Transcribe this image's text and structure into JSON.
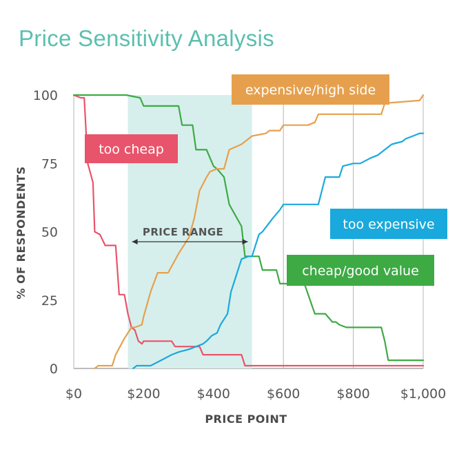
{
  "chart_data": {
    "type": "line",
    "title": "Price Sensitivity Analysis",
    "xlabel": "PRICE POINT",
    "ylabel": "% OF RESPONDENTS",
    "xlim": [
      0,
      1000
    ],
    "ylim": [
      0,
      100
    ],
    "x_ticks": [
      {
        "value": 0,
        "label": "$0"
      },
      {
        "value": 200,
        "label": "$200"
      },
      {
        "value": 400,
        "label": "$400"
      },
      {
        "value": 600,
        "label": "$600"
      },
      {
        "value": 800,
        "label": "$800"
      },
      {
        "value": 1000,
        "label": "$1,000"
      }
    ],
    "y_ticks": [
      {
        "value": 0,
        "label": "0"
      },
      {
        "value": 25,
        "label": "25"
      },
      {
        "value": 50,
        "label": "50"
      },
      {
        "value": 75,
        "label": "75"
      },
      {
        "value": 100,
        "label": "100"
      }
    ],
    "grid": true,
    "price_range": {
      "label": "PRICE RANGE",
      "x_start": 155,
      "x_end": 510,
      "color": "#d6efec"
    },
    "series": [
      {
        "name": "too cheap",
        "color": "#e8546b",
        "x": [
          0,
          20,
          30,
          40,
          55,
          60,
          75,
          90,
          120,
          130,
          145,
          155,
          165,
          175,
          185,
          195,
          200,
          220,
          280,
          290,
          360,
          370,
          480,
          490,
          1000
        ],
        "y": [
          100,
          99,
          99,
          75,
          68,
          50,
          49,
          45,
          45,
          27,
          27,
          20,
          15,
          14,
          10,
          9,
          10,
          10,
          10,
          8,
          8,
          5,
          5,
          1,
          1
        ]
      },
      {
        "name": "cheap/good value",
        "color": "#3daa44",
        "x": [
          0,
          150,
          190,
          200,
          300,
          310,
          340,
          350,
          380,
          390,
          400,
          410,
          430,
          445,
          480,
          490,
          530,
          540,
          580,
          590,
          660,
          690,
          720,
          740,
          750,
          760,
          780,
          880,
          890,
          900,
          1000
        ],
        "y": [
          100,
          100,
          99,
          96,
          96,
          89,
          89,
          80,
          80,
          77,
          74,
          73,
          70,
          60,
          52,
          41,
          41,
          36,
          36,
          31,
          31,
          20,
          20,
          17,
          17,
          16,
          15,
          15,
          10,
          3,
          3
        ]
      },
      {
        "name": "expensive/high side",
        "color": "#e6a04d",
        "x": [
          60,
          70,
          110,
          120,
          145,
          150,
          165,
          175,
          195,
          200,
          220,
          240,
          270,
          300,
          330,
          345,
          360,
          380,
          390,
          410,
          430,
          445,
          480,
          510,
          550,
          560,
          590,
          600,
          670,
          690,
          700,
          880,
          890,
          990,
          1000
        ],
        "y": [
          0,
          1,
          1,
          5,
          11,
          12,
          15,
          15,
          16,
          19,
          28,
          35,
          35,
          42,
          48,
          55,
          65,
          70,
          72,
          73,
          73,
          80,
          82,
          85,
          86,
          87,
          87,
          89,
          89,
          90,
          93,
          93,
          97,
          98,
          100
        ]
      },
      {
        "name": "too expensive",
        "color": "#1aa9dc",
        "x": [
          170,
          180,
          220,
          250,
          280,
          300,
          330,
          350,
          370,
          380,
          395,
          410,
          420,
          440,
          450,
          460,
          470,
          480,
          500,
          510,
          530,
          540,
          570,
          590,
          600,
          700,
          720,
          760,
          770,
          800,
          820,
          850,
          870,
          890,
          910,
          940,
          950,
          970,
          990,
          1000
        ],
        "y": [
          0,
          1,
          1,
          3,
          5,
          6,
          7,
          8,
          9,
          10,
          12,
          13,
          16,
          20,
          28,
          32,
          36,
          40,
          41,
          41,
          49,
          50,
          55,
          58,
          60,
          60,
          70,
          70,
          74,
          75,
          75,
          77,
          78,
          80,
          82,
          83,
          84,
          85,
          86,
          86
        ]
      }
    ],
    "annotations": [
      {
        "series": "too cheap",
        "text": "too cheap",
        "color": "#e8546b"
      },
      {
        "series": "expensive/high side",
        "text": "expensive/high side",
        "color": "#e6a04d"
      },
      {
        "series": "too expensive",
        "text": "too expensive",
        "color": "#1aa9dc"
      },
      {
        "series": "cheap/good value",
        "text": "cheap/good value",
        "color": "#3daa44"
      }
    ]
  }
}
